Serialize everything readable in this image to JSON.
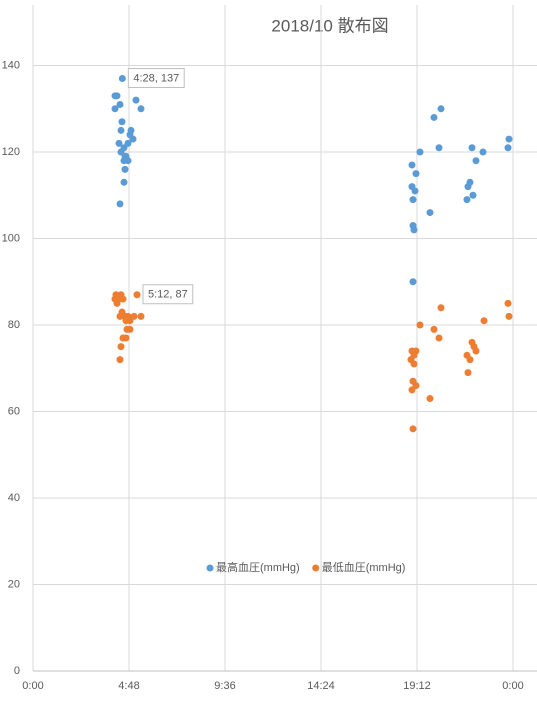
{
  "chart_data": {
    "type": "scatter",
    "title": "2018/10 散布図",
    "xlim": [
      0,
      25.2
    ],
    "ylim": [
      0,
      154
    ],
    "xticks": [
      {
        "value": 0,
        "label": "0:00"
      },
      {
        "value": 4.8,
        "label": "4:48"
      },
      {
        "value": 9.6,
        "label": "9:36"
      },
      {
        "value": 14.4,
        "label": "14:24"
      },
      {
        "value": 19.2,
        "label": "19:12"
      },
      {
        "value": 24,
        "label": "0:00"
      }
    ],
    "yticks": [
      0,
      20,
      40,
      60,
      80,
      100,
      120,
      140
    ],
    "grid": true,
    "legend": "bottom",
    "series": [
      {
        "name": "最高血圧(mmHg)",
        "color": "#5b9bd5",
        "x": [
          4.4667,
          4.2,
          4.1,
          4.1,
          4.35,
          5.15,
          5.4,
          4.45,
          4.4,
          4.9,
          4.85,
          5.0,
          4.75,
          4.3,
          4.55,
          4.4,
          4.65,
          4.6,
          4.75,
          4.55,
          4.6,
          4.55,
          4.35,
          18.95,
          19.15,
          18.95,
          19.1,
          19.0,
          19.0,
          19.05,
          19.35,
          20.4,
          20.05,
          20.3,
          19.85,
          21.95,
          22.5,
          22.15,
          21.85,
          21.75,
          22.0,
          21.7,
          23.8,
          23.75,
          19.0
        ],
        "values": [
          137,
          133,
          133,
          130,
          131,
          132,
          130,
          127,
          125,
          125,
          124,
          123,
          122,
          122,
          121,
          120,
          119,
          119,
          118,
          118,
          116,
          113,
          108,
          117,
          115,
          112,
          111,
          109,
          103,
          102,
          120,
          130,
          128,
          121,
          106,
          121,
          120,
          118,
          113,
          112,
          110,
          109,
          123,
          121,
          90
        ],
        "value_labels": [
          "4:28, 137",
          null,
          null,
          null,
          null,
          null,
          null,
          null,
          null,
          null,
          null,
          null,
          null,
          null,
          null,
          null,
          null,
          null,
          null,
          null,
          null,
          null,
          null,
          null,
          null,
          null,
          null,
          null,
          null,
          null,
          null,
          null,
          null,
          null,
          null,
          null,
          null,
          null,
          null,
          null,
          null,
          null,
          null,
          null,
          null
        ]
      },
      {
        "name": "最低血圧(mmHg)",
        "color": "#ed7d31",
        "x": [
          5.2,
          4.15,
          4.4,
          4.1,
          4.2,
          4.3,
          4.5,
          4.45,
          4.6,
          4.35,
          4.75,
          5.05,
          5.4,
          4.65,
          4.85,
          4.7,
          4.85,
          4.5,
          4.65,
          4.4,
          4.35,
          18.95,
          19.15,
          19.05,
          18.9,
          19.05,
          19.0,
          19.15,
          18.95,
          19.0,
          19.35,
          19.85,
          20.4,
          20.05,
          20.3,
          22.55,
          21.95,
          22.05,
          22.15,
          21.7,
          21.85,
          21.75,
          23.75,
          23.8
        ],
        "values": [
          87,
          87,
          87,
          86,
          85,
          86,
          86,
          83,
          82,
          82,
          82,
          82,
          82,
          81,
          81,
          79,
          79,
          77,
          77,
          75,
          72,
          74,
          74,
          73,
          72,
          71,
          67,
          66,
          65,
          56,
          80,
          63,
          84,
          79,
          77,
          81,
          76,
          75,
          74,
          73,
          72,
          69,
          85,
          82
        ],
        "value_labels": [
          "5:12, 87",
          null,
          null,
          null,
          null,
          null,
          null,
          null,
          null,
          null,
          null,
          null,
          null,
          null,
          null,
          null,
          null,
          null,
          null,
          null,
          null,
          null,
          null,
          null,
          null,
          null,
          null,
          null,
          null,
          null,
          null,
          null,
          null,
          null,
          null,
          null,
          null,
          null,
          null,
          null,
          null,
          null,
          null,
          null
        ]
      }
    ]
  }
}
